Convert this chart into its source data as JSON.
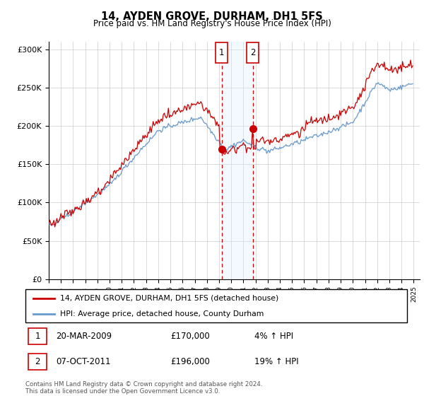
{
  "title": "14, AYDEN GROVE, DURHAM, DH1 5FS",
  "subtitle": "Price paid vs. HM Land Registry's House Price Index (HPI)",
  "ylabel_ticks": [
    "£0",
    "£50K",
    "£100K",
    "£150K",
    "£200K",
    "£250K",
    "£300K"
  ],
  "ytick_values": [
    0,
    50000,
    100000,
    150000,
    200000,
    250000,
    300000
  ],
  "ylim": [
    0,
    310000
  ],
  "xlim_start": 1995.0,
  "xlim_end": 2025.5,
  "legend_line1": "14, AYDEN GROVE, DURHAM, DH1 5FS (detached house)",
  "legend_line2": "HPI: Average price, detached house, County Durham",
  "sale1_label": "1",
  "sale1_date": "20-MAR-2009",
  "sale1_price": "£170,000",
  "sale1_hpi": "4% ↑ HPI",
  "sale1_x": 2009.22,
  "sale1_y": 170000,
  "sale2_label": "2",
  "sale2_date": "07-OCT-2011",
  "sale2_price": "£196,000",
  "sale2_hpi": "19% ↑ HPI",
  "sale2_x": 2011.77,
  "sale2_y": 196000,
  "red_color": "#cc0000",
  "blue_color": "#6699cc",
  "shade_color": "#ddeeff",
  "footnote": "Contains HM Land Registry data © Crown copyright and database right 2024.\nThis data is licensed under the Open Government Licence v3.0."
}
